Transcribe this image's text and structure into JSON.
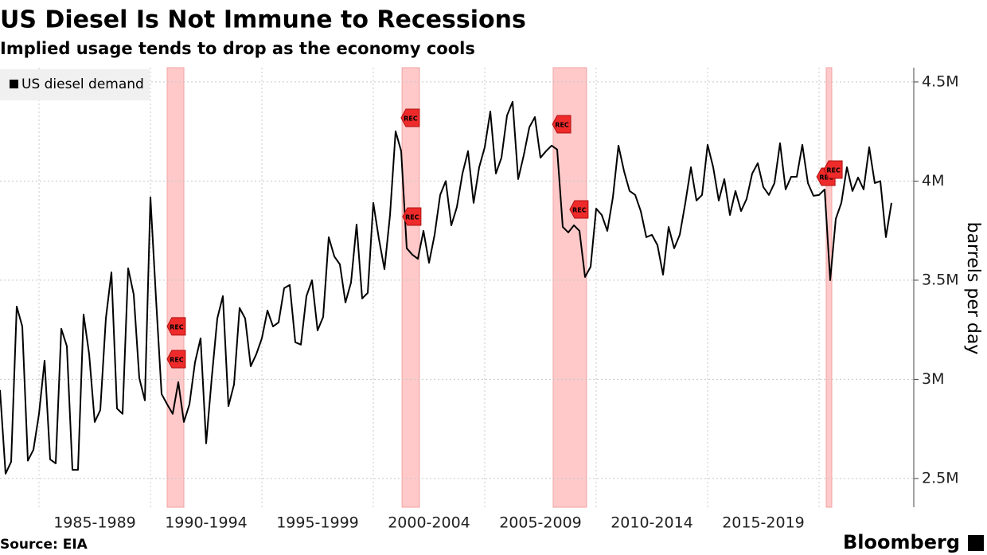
{
  "chart_data": {
    "type": "line",
    "title": "US Diesel Is Not Immune to Recessions",
    "subtitle": "Implied usage tends to drop as the economy cools",
    "y_label": "barrels per day",
    "source": "Source: EIA",
    "brand": "Bloomberg",
    "legend": "top-left",
    "grid": true,
    "y_axis_side": "right",
    "xlim": [
      1983.25,
      2024.25
    ],
    "ylim": [
      2355000,
      4572000
    ],
    "xticks": [
      {
        "value": 1985,
        "label": "1985-1989"
      },
      {
        "value": 1990,
        "label": "1990-1994"
      },
      {
        "value": 1995,
        "label": "1995-1999"
      },
      {
        "value": 2000,
        "label": "2000-2004"
      },
      {
        "value": 2005,
        "label": "2005-2009"
      },
      {
        "value": 2010,
        "label": "2010-2014"
      },
      {
        "value": 2015,
        "label": "2015-2019"
      },
      {
        "value": 2020,
        "label": null
      }
    ],
    "yticks": [
      {
        "value": 2500000,
        "label": "2.5M"
      },
      {
        "value": 3000000,
        "label": "3M"
      },
      {
        "value": 3500000,
        "label": "3.5M"
      },
      {
        "value": 4000000,
        "label": "4M"
      },
      {
        "value": 4500000,
        "label": "4.5M"
      }
    ],
    "recessions": [
      [
        1990.75,
        1991.5
      ],
      [
        2001.29,
        2002.07
      ],
      [
        2008.07,
        2009.57
      ],
      [
        2020.32,
        2020.57
      ]
    ],
    "recession_color": "#ffc9c9",
    "annotations": [
      {
        "text": "REC",
        "x": 1991.14,
        "y": 3267000
      },
      {
        "text": "REC",
        "x": 1991.14,
        "y": 3102000
      },
      {
        "text": "REC",
        "x": 2001.64,
        "y": 4319000
      },
      {
        "text": "REC",
        "x": 2001.71,
        "y": 3821000
      },
      {
        "text": "REC",
        "x": 2008.43,
        "y": 4287000
      },
      {
        "text": "REC",
        "x": 2009.21,
        "y": 3857000
      },
      {
        "text": "REC",
        "x": 2020.29,
        "y": 4022000
      },
      {
        "text": "REC",
        "x": 2020.61,
        "y": 4058000
      }
    ],
    "x": [
      1983.25,
      1983.5,
      1983.75,
      1984,
      1984.25,
      1984.5,
      1984.75,
      1985,
      1985.25,
      1985.5,
      1985.75,
      1986,
      1986.25,
      1986.5,
      1986.75,
      1987,
      1987.25,
      1987.5,
      1987.75,
      1988,
      1988.25,
      1988.5,
      1988.75,
      1989,
      1989.25,
      1989.5,
      1989.75,
      1990,
      1990.25,
      1990.5,
      1990.75,
      1991,
      1991.25,
      1991.5,
      1991.75,
      1992,
      1992.25,
      1992.5,
      1992.75,
      1993,
      1993.25,
      1993.5,
      1993.75,
      1994,
      1994.25,
      1994.5,
      1994.75,
      1995,
      1995.25,
      1995.5,
      1995.75,
      1996,
      1996.25,
      1996.5,
      1996.75,
      1997,
      1997.25,
      1997.5,
      1997.75,
      1998,
      1998.25,
      1998.5,
      1998.75,
      1999,
      1999.25,
      1999.5,
      1999.75,
      2000,
      2000.25,
      2000.5,
      2000.75,
      2001,
      2001.25,
      2001.5,
      2001.75,
      2002,
      2002.25,
      2002.5,
      2002.75,
      2003,
      2003.25,
      2003.5,
      2003.75,
      2004,
      2004.25,
      2004.5,
      2004.75,
      2005,
      2005.25,
      2005.5,
      2005.75,
      2006,
      2006.25,
      2006.5,
      2006.75,
      2007,
      2007.25,
      2007.5,
      2007.75,
      2008,
      2008.25,
      2008.5,
      2008.75,
      2009,
      2009.25,
      2009.5,
      2009.75,
      2010,
      2010.25,
      2010.5,
      2010.75,
      2011,
      2011.25,
      2011.5,
      2011.75,
      2012,
      2012.25,
      2012.5,
      2012.75,
      2013,
      2013.25,
      2013.5,
      2013.75,
      2014,
      2014.25,
      2014.5,
      2014.75,
      2015,
      2015.25,
      2015.5,
      2015.75,
      2016,
      2016.25,
      2016.5,
      2016.75,
      2017,
      2017.25,
      2017.5,
      2017.75,
      2018,
      2018.25,
      2018.5,
      2018.75,
      2019,
      2019.25,
      2019.5,
      2019.75,
      2020,
      2020.25,
      2020.5,
      2020.75,
      2021,
      2021.25,
      2021.5,
      2021.75,
      2022,
      2022.25,
      2022.5,
      2022.75,
      2023,
      2023.25
    ],
    "series": [
      {
        "name": "US diesel demand",
        "color": "#000000",
        "values": [
          2946000,
          2524000,
          2584000,
          3367000,
          3267000,
          2590000,
          2645000,
          2826000,
          3094000,
          2596000,
          2576000,
          3255000,
          3167000,
          2544000,
          2544000,
          3327000,
          3127000,
          2785000,
          2845000,
          3307000,
          3540000,
          2853000,
          2826000,
          3560000,
          3428000,
          3006000,
          2894000,
          3918000,
          3408000,
          2926000,
          2874000,
          2826000,
          2986000,
          2785000,
          2874000,
          3086000,
          3207000,
          2677000,
          3006000,
          3307000,
          3420000,
          2865000,
          2974000,
          3360000,
          3307000,
          3066000,
          3127000,
          3207000,
          3347000,
          3267000,
          3287000,
          3460000,
          3476000,
          3187000,
          3175000,
          3420000,
          3500000,
          3247000,
          3315000,
          3717000,
          3620000,
          3580000,
          3388000,
          3488000,
          3781000,
          3408000,
          3436000,
          3890000,
          3709000,
          3556000,
          3829000,
          4251000,
          4151000,
          3661000,
          3629000,
          3608000,
          3749000,
          3588000,
          3729000,
          3930000,
          4000000,
          3777000,
          3869000,
          4038000,
          4151000,
          3890000,
          4070000,
          4171000,
          4351000,
          4038000,
          4118000,
          4331000,
          4400000,
          4010000,
          4130000,
          4271000,
          4323000,
          4118000,
          4151000,
          4179000,
          4159000,
          3769000,
          3741000,
          3777000,
          3749000,
          3516000,
          3568000,
          3861000,
          3829000,
          3749000,
          3918000,
          4179000,
          4050000,
          3950000,
          3930000,
          3849000,
          3717000,
          3729000,
          3677000,
          3528000,
          3769000,
          3661000,
          3729000,
          3890000,
          4070000,
          3902000,
          3930000,
          4183000,
          4070000,
          3902000,
          4010000,
          3829000,
          3950000,
          3849000,
          3910000,
          4038000,
          4090000,
          3970000,
          3930000,
          3990000,
          4191000,
          3958000,
          4022000,
          4022000,
          4183000,
          3990000,
          3926000,
          3930000,
          3958000,
          3500000,
          3809000,
          3890000,
          4070000,
          3950000,
          4018000,
          3958000,
          4171000,
          3990000,
          4000000,
          3717000,
          3890000
        ]
      }
    ]
  }
}
